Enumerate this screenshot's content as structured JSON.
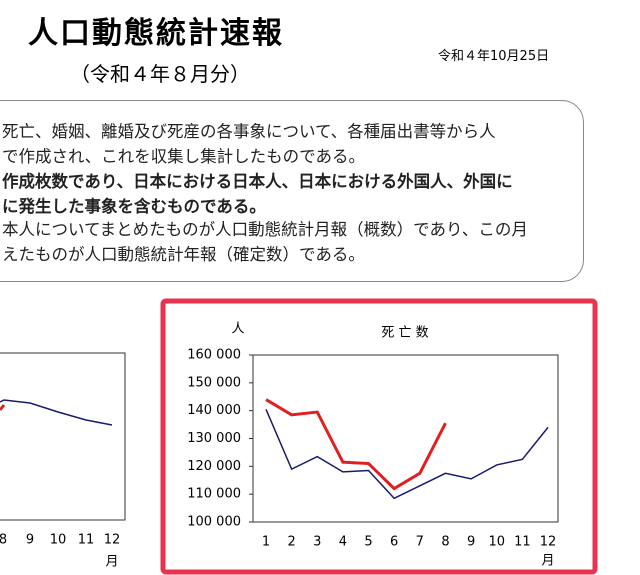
{
  "header": {
    "title": "人口動態統計速報",
    "subtitle": "（令和４年８月分）",
    "date": "令和４年10月25日"
  },
  "notice": {
    "lines": [
      {
        "text": "死亡、婚姻、離婚及び死産の各事象について、各種届出書等から人",
        "bold": false
      },
      {
        "text": "で作成され、これを収集し集計したものである。",
        "bold": false
      },
      {
        "text": "作成枚数であり、日本における日本人、日本における外国人、外国に",
        "bold": true
      },
      {
        "text": "に発生した事象を含むものである。",
        "bold": true
      },
      {
        "text": "本人についてまとめたものが人口動態統計月報（概数）であり、この月",
        "bold": false
      },
      {
        "text": "えたものが人口動態統計年報（確定数）である。",
        "bold": false
      }
    ]
  },
  "side_chart": {
    "categories": [
      "8",
      "9",
      "10",
      "11",
      "12"
    ],
    "x_unit": "月"
  },
  "chart_data": {
    "type": "line",
    "title": "死 亡 数",
    "y_unit": "人",
    "x_unit": "月",
    "categories": [
      "1",
      "2",
      "3",
      "4",
      "5",
      "6",
      "7",
      "8",
      "9",
      "10",
      "11",
      "12"
    ],
    "ylim": [
      100000,
      160000
    ],
    "yticks": [
      {
        "value": 100000,
        "label": "100 000"
      },
      {
        "value": 110000,
        "label": "110 000"
      },
      {
        "value": 120000,
        "label": "120 000"
      },
      {
        "value": 130000,
        "label": "130 000"
      },
      {
        "value": 140000,
        "label": "140 000"
      },
      {
        "value": 150000,
        "label": "150 000"
      },
      {
        "value": 160000,
        "label": "160 000"
      }
    ],
    "series": [
      {
        "color": "#1a1a6e",
        "width": 1.5,
        "values": [
          140500,
          119000,
          123500,
          118000,
          118500,
          108500,
          113000,
          117500,
          115500,
          120500,
          122500,
          134000
        ]
      },
      {
        "color": "#e02020",
        "width": 3,
        "values": [
          144000,
          138500,
          139500,
          121500,
          121000,
          112000,
          117500,
          135500,
          null,
          null,
          null,
          null
        ]
      }
    ]
  }
}
